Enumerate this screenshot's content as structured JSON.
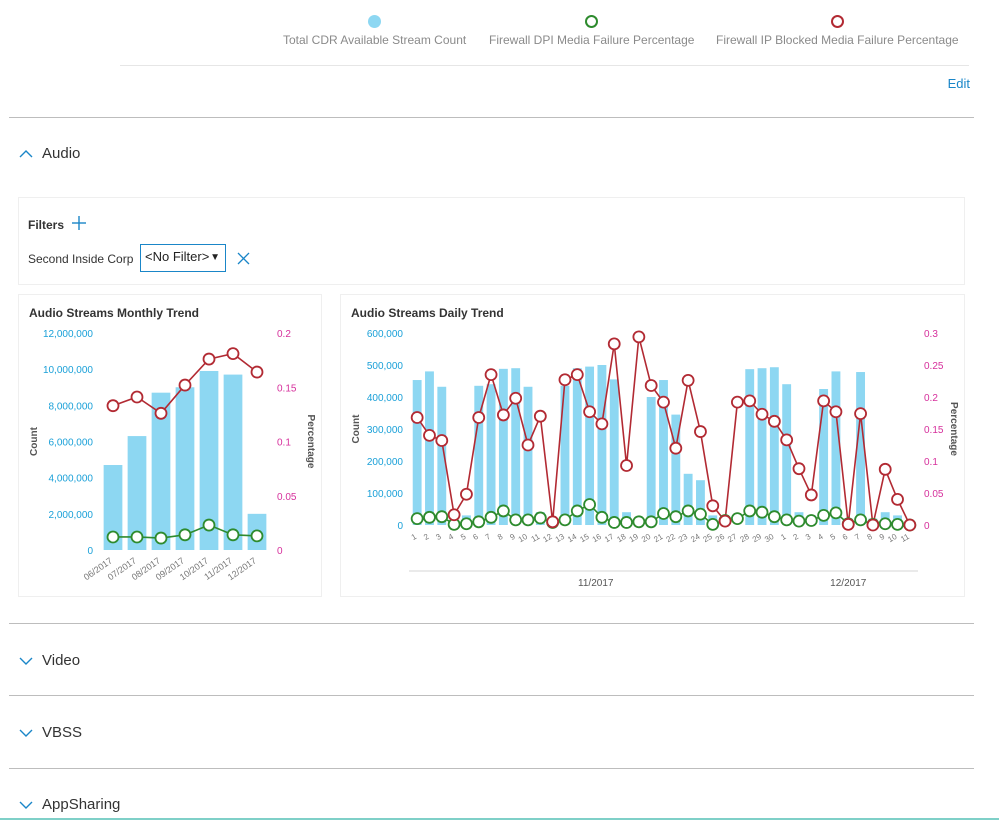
{
  "legend": {
    "items": [
      {
        "label": "Total CDR Available Stream Count",
        "color": "#8dd7f2"
      },
      {
        "label": "Firewall DPI Media Failure Percentage",
        "color": "#2e8b2e"
      },
      {
        "label": "Firewall IP Blocked Media Failure Percentage",
        "color": "#b22a33"
      }
    ]
  },
  "edit_label": "Edit",
  "sections": [
    {
      "label": "Audio",
      "expanded": true
    },
    {
      "label": "Video",
      "expanded": false
    },
    {
      "label": "VBSS",
      "expanded": false
    },
    {
      "label": "AppSharing",
      "expanded": false
    }
  ],
  "filters": {
    "title": "Filters",
    "filter_label": "Second Inside Corp",
    "selected_value": "<No Filter>"
  },
  "colors": {
    "bar": "#8dd7f2",
    "dpi": "#2e8b2e",
    "ip": "#b22a33",
    "count_axis": "#1aa0d8",
    "pct_axis": "#d6309c",
    "accent": "#1a86c8"
  },
  "chart_data": [
    {
      "type": "bar",
      "title": "Audio Streams Monthly Trend",
      "ylabel": "Count",
      "y2label": "Percentage",
      "categories": [
        "06/2017",
        "07/2017",
        "08/2017",
        "09/2017",
        "10/2017",
        "11/2017",
        "12/2017"
      ],
      "ylim": [
        0,
        12000000
      ],
      "yticks": [
        "0",
        "2,000,000",
        "4,000,000",
        "6,000,000",
        "8,000,000",
        "10,000,000",
        "12,000,000"
      ],
      "y2lim": [
        0,
        0.2
      ],
      "y2ticks": [
        "0",
        "0.05",
        "0.1",
        "0.15",
        "0.2"
      ],
      "series": [
        {
          "name": "Total CDR Available Stream Count",
          "type": "bar",
          "axis": "left",
          "values": [
            4700000,
            6300000,
            8700000,
            9000000,
            9900000,
            9700000,
            2000000
          ]
        },
        {
          "name": "Firewall DPI Media Failure Percentage",
          "type": "line",
          "axis": "right",
          "values": [
            0.012,
            0.012,
            0.011,
            0.014,
            0.023,
            0.014,
            0.013
          ]
        },
        {
          "name": "Firewall IP Blocked Media Failure Percentage",
          "type": "line",
          "axis": "right",
          "values": [
            0.133,
            0.141,
            0.126,
            0.152,
            0.176,
            0.181,
            0.164
          ]
        }
      ]
    },
    {
      "type": "bar",
      "title": "Audio Streams Daily Trend",
      "ylabel": "Count",
      "y2label": "Percentage",
      "categories": [
        "1",
        "2",
        "3",
        "4",
        "5",
        "6",
        "7",
        "8",
        "9",
        "10",
        "11",
        "12",
        "13",
        "14",
        "15",
        "16",
        "17",
        "18",
        "19",
        "20",
        "21",
        "22",
        "23",
        "24",
        "25",
        "26",
        "27",
        "28",
        "29",
        "30",
        "1",
        "2",
        "3",
        "4",
        "5",
        "6",
        "7",
        "8",
        "9",
        "10",
        "11"
      ],
      "month_labels": [
        "11/2017",
        "12/2017"
      ],
      "ylim": [
        0,
        600000
      ],
      "yticks": [
        "0",
        "100,000",
        "200,000",
        "300,000",
        "400,000",
        "500,000",
        "600,000"
      ],
      "y2lim": [
        0,
        0.3
      ],
      "y2ticks": [
        "0",
        "0.05",
        "0.1",
        "0.15",
        "0.2",
        "0.25",
        "0.3"
      ],
      "series": [
        {
          "name": "Total CDR Available Stream Count",
          "type": "bar",
          "axis": "left",
          "values": [
            453000,
            480000,
            432000,
            30000,
            30000,
            435000,
            440000,
            488000,
            490000,
            432000,
            40000,
            0,
            435000,
            490000,
            495000,
            500000,
            455000,
            40000,
            0,
            400000,
            453000,
            345000,
            160000,
            140000,
            30000,
            0,
            0,
            487000,
            490000,
            493000,
            440000,
            40000,
            30000,
            425000,
            480000,
            20000,
            478000,
            20000,
            40000,
            30000,
            0
          ]
        },
        {
          "name": "Firewall DPI Media Failure Percentage",
          "type": "line",
          "axis": "right",
          "values": [
            0.01,
            0.012,
            0.013,
            0.001,
            0.002,
            0.005,
            0.012,
            0.022,
            0.008,
            0.008,
            0.011,
            0.004,
            0.008,
            0.022,
            0.032,
            0.012,
            0.004,
            0.004,
            0.005,
            0.005,
            0.018,
            0.013,
            0.022,
            0.017,
            0.001,
            0.007,
            0.01,
            0.022,
            0.02,
            0.013,
            0.008,
            0.006,
            0.007,
            0.015,
            0.019,
            0.002,
            0.008,
            0.001,
            0.002,
            0.001,
            0.0
          ]
        },
        {
          "name": "Firewall IP Blocked Media Failure Percentage",
          "type": "line",
          "axis": "right",
          "values": [
            0.168,
            0.14,
            0.132,
            0.016,
            0.048,
            0.168,
            0.235,
            0.172,
            0.198,
            0.125,
            0.17,
            0.005,
            0.227,
            0.235,
            0.177,
            0.158,
            0.283,
            0.093,
            0.294,
            0.218,
            0.192,
            0.12,
            0.226,
            0.146,
            0.03,
            0.006,
            0.192,
            0.194,
            0.173,
            0.162,
            0.133,
            0.088,
            0.047,
            0.194,
            0.177,
            0.001,
            0.174,
            0.0,
            0.087,
            0.04,
            0.0
          ]
        }
      ]
    }
  ]
}
